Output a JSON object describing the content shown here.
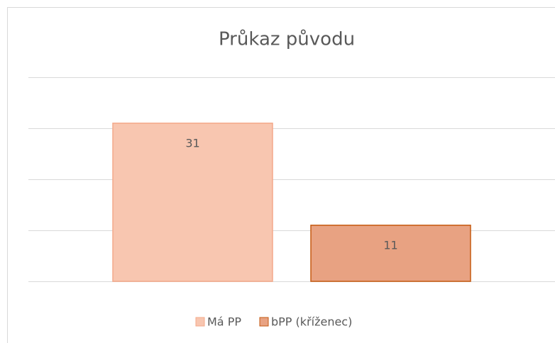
{
  "chart_data": {
    "type": "bar",
    "title": "Průkaz původu",
    "categories": [
      null
    ],
    "series": [
      {
        "name": "Má PP",
        "color": "#f8c6b0",
        "values": [
          31
        ]
      },
      {
        "name": "bPP (kříženec)",
        "color": "#e8a282",
        "values": [
          11
        ]
      }
    ],
    "ylim": [
      0,
      40
    ],
    "yticks": [
      0,
      10,
      20,
      30,
      40
    ],
    "grid": true,
    "legend": "bottom"
  }
}
